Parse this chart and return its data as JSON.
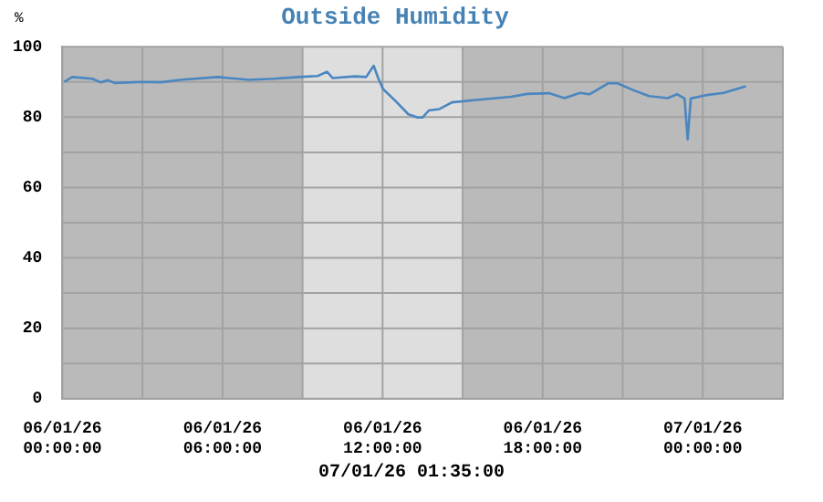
{
  "chart_data": {
    "type": "line",
    "title": "Outside Humidity",
    "ylabel": "%",
    "annotations": [
      "07/01/26 01:35:00"
    ],
    "x": [
      "--01-06T00:04",
      "--01-06T00:22",
      "--01-06T01:07",
      "--01-06T01:26",
      "--01-06T01:43",
      "--01-06T01:57",
      "--01-06T03:00",
      "--01-06T03:42",
      "--01-06T04:25",
      "--01-06T05:49",
      "--01-06T06:59",
      "--01-06T07:55",
      "--01-06T08:52",
      "--01-06T09:34",
      "--01-06T09:55",
      "--01-06T10:08",
      "--01-06T10:58",
      "--01-06T11:23",
      "--01-06T11:40",
      "--01-06T11:50",
      "--01-06T12:01",
      "--01-06T12:29",
      "--01-06T12:58",
      "--01-06T13:19",
      "--01-06T13:30",
      "--01-06T13:44",
      "--01-06T14:08",
      "--01-06T14:36",
      "--01-06T15:25",
      "--01-06T16:49",
      "--01-06T17:25",
      "--01-06T18:14",
      "--01-06T18:49",
      "--01-06T19:24",
      "--01-06T19:45",
      "--01-06T20:27",
      "--01-06T20:48",
      "--01-06T21:23",
      "--01-06T21:59",
      "--01-06T22:41",
      "--01-06T23:02",
      "--01-06T23:19",
      "--01-06T23:26",
      "--01-06T23:33",
      "--01-07T00:05",
      "--01-07T00:47",
      "--01-07T01:37"
    ],
    "series": [
      {
        "color": "#4a86c0",
        "values": [
          90.0,
          91.4,
          90.9,
          89.9,
          90.5,
          89.7,
          90.0,
          89.9,
          90.6,
          91.4,
          90.6,
          90.9,
          91.4,
          91.7,
          92.9,
          91.1,
          91.6,
          91.4,
          94.6,
          91.1,
          88.0,
          84.6,
          80.8,
          79.9,
          79.9,
          81.9,
          82.3,
          84.2,
          84.8,
          85.8,
          86.6,
          86.8,
          85.4,
          86.9,
          86.5,
          89.6,
          89.6,
          87.7,
          86.0,
          85.4,
          86.5,
          85.3,
          73.7,
          85.3,
          86.2,
          86.9,
          88.8
        ]
      }
    ],
    "xlim": [
      "--01-06T00:00",
      "--01-07T03:00"
    ],
    "xticks": [
      {
        "value": "--01-06T00:00",
        "label": "06/01/26 00:00:00"
      },
      {
        "value": "--01-06T03:00",
        "label": null
      },
      {
        "value": "--01-06T06:00",
        "label": "06/01/26 06:00:00"
      },
      {
        "value": "--01-06T09:00",
        "label": null
      },
      {
        "value": "--01-06T12:00",
        "label": "06/01/26 12:00:00"
      },
      {
        "value": "--01-06T15:00",
        "label": null
      },
      {
        "value": "--01-06T18:00",
        "label": "06/01/26 18:00:00"
      },
      {
        "value": "--01-06T21:00",
        "label": null
      },
      {
        "value": "--01-07T00:00",
        "label": "07/01/26 00:00:00"
      },
      {
        "value": "--01-07T03:00",
        "label": null
      }
    ],
    "ylim": [
      0,
      100
    ],
    "yticks": [
      0,
      {
        "value": 10,
        "label": null
      },
      20,
      {
        "value": 30,
        "label": null
      },
      40,
      {
        "value": 50,
        "label": null
      },
      60,
      {
        "value": 70,
        "label": null
      },
      80,
      {
        "value": 90,
        "label": null
      },
      100
    ],
    "bands": [
      {
        "axis": "x",
        "from": "--01-06T09:00",
        "to": "--01-06T15:00",
        "label": null,
        "color": "#dedede"
      }
    ],
    "grid": true,
    "marker": "none",
    "line_style": "solid",
    "legend": false
  }
}
